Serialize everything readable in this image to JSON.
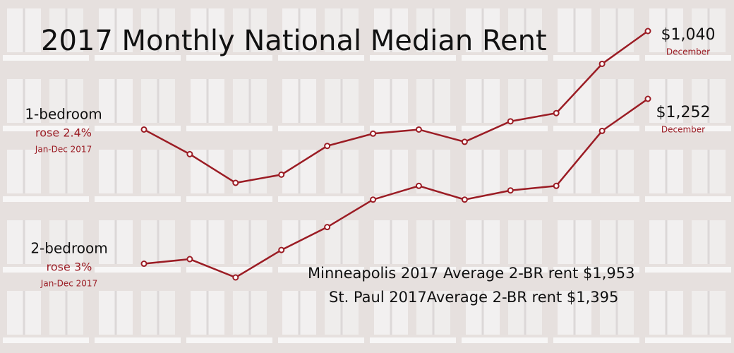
{
  "chart_data": {
    "type": "line",
    "title": "2017 Monthly National Median Rent",
    "categories": [
      null,
      null,
      null,
      null,
      null,
      null,
      null,
      null,
      null,
      null,
      null,
      null
    ],
    "series": [
      {
        "name": "1-bedroom",
        "change": "rose 2.4%",
        "period": "Jan-Dec 2017",
        "end_note": "December",
        "color": "#9b1c24",
        "values": [
          1016,
          1010,
          1003,
          1005,
          1012,
          1015,
          1016,
          1013,
          1018,
          1020,
          1032,
          1040
        ],
        "value_labels": [
          null,
          null,
          null,
          null,
          null,
          null,
          null,
          null,
          null,
          null,
          null,
          "$1,040"
        ]
      },
      {
        "name": "2-bedroom",
        "change": "rose 3%",
        "period": "Jan-Dec 2017",
        "end_note": "December",
        "color": "#9b1c24",
        "values": [
          1216,
          1217,
          1213,
          1219,
          1224,
          1230,
          1233,
          1230,
          1232,
          1233,
          1245,
          1252
        ],
        "value_labels": [
          null,
          null,
          null,
          null,
          null,
          null,
          null,
          null,
          null,
          null,
          null,
          "$1,252"
        ]
      }
    ],
    "annotations": [
      "Minneapolis 2017 Average 2-BR rent $1,953",
      "St. Paul 2017Average 2-BR rent $1,395"
    ]
  }
}
